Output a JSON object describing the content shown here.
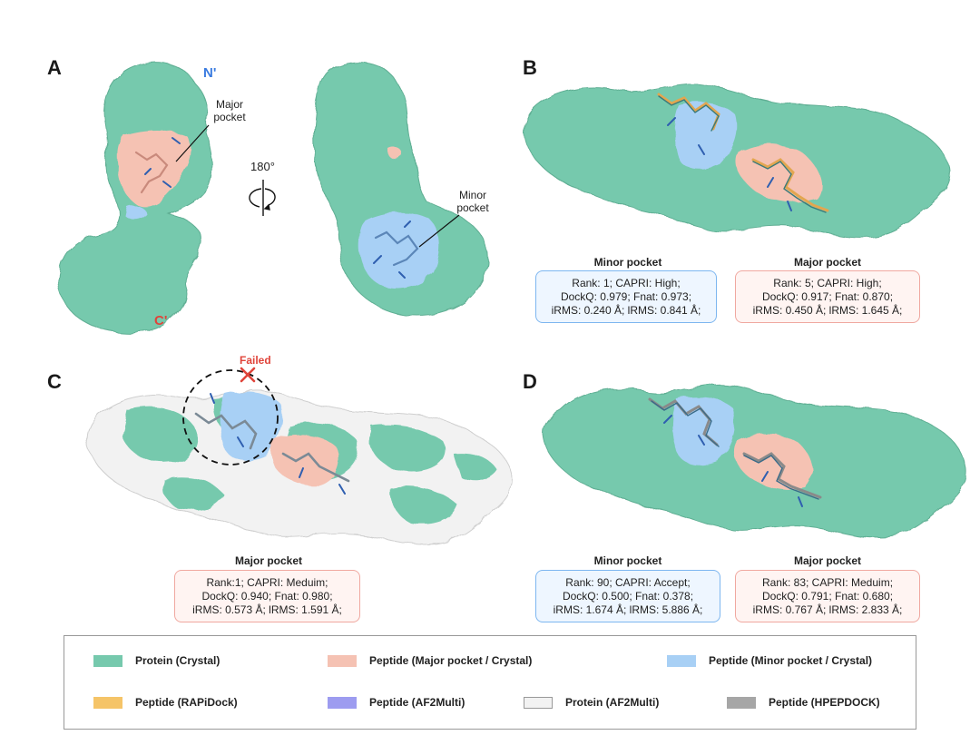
{
  "colors": {
    "protein_crystal": "#76c9ad",
    "peptide_major": "#f5c2b3",
    "peptide_minor": "#a8d0f5",
    "peptide_rapidock": "#f5c468",
    "peptide_af2multi": "#9d9cf0",
    "protein_af2multi": "#f2f2f2",
    "peptide_hpepdock": "#a6a6a6",
    "n_term": "#3a7be0",
    "c_term": "#e0443a",
    "failed": "#e0443a"
  },
  "panels": {
    "A": {
      "letter": "A",
      "n_label": "N'",
      "c_label": "C'",
      "major_label_1": "Major",
      "major_label_2": "pocket",
      "rotation": "180°",
      "minor_label_1": "Minor",
      "minor_label_2": "pocket"
    },
    "B": {
      "letter": "B",
      "minor": {
        "title": "Minor pocket",
        "lines": [
          "Rank: 1; CAPRI: High;",
          "DockQ: 0.979;  Fnat: 0.973;",
          "iRMS: 0.240 Å;  lRMS: 0.841 Å;"
        ]
      },
      "major": {
        "title": "Major pocket",
        "lines": [
          "Rank: 5; CAPRI: High;",
          "DockQ: 0.917;  Fnat: 0.870;",
          "iRMS: 0.450 Å;  lRMS: 1.645 Å;"
        ]
      }
    },
    "C": {
      "letter": "C",
      "failed_label": "Failed",
      "major": {
        "title": "Major pocket",
        "lines": [
          "Rank:1; CAPRI: Meduim;",
          "DockQ: 0.940;  Fnat: 0.980;",
          "iRMS: 0.573 Å;  lRMS: 1.591 Å;"
        ]
      }
    },
    "D": {
      "letter": "D",
      "minor": {
        "title": "Minor pocket",
        "lines": [
          "Rank: 90; CAPRI: Accept;",
          "DockQ: 0.500;  Fnat: 0.378;",
          "iRMS: 1.674 Å;  lRMS: 5.886 Å;"
        ]
      },
      "major": {
        "title": "Major pocket",
        "lines": [
          "Rank: 83; CAPRI: Meduim;",
          "DockQ: 0.791;  Fnat: 0.680;",
          "iRMS: 0.767 Å;  lRMS: 2.833 Å;"
        ]
      }
    }
  },
  "legend": [
    {
      "label": "Protein (Crystal)",
      "color": "#76c9ad"
    },
    {
      "label": "Peptide (Major pocket / Crystal)",
      "color": "#f5c2b3"
    },
    {
      "label": "Peptide (Minor pocket / Crystal)",
      "color": "#a8d0f5"
    },
    {
      "label": "Peptide (RAPiDock)",
      "color": "#f5c468"
    },
    {
      "label": "Peptide (AF2Multi)",
      "color": "#9d9cf0"
    },
    {
      "label": "Protein (AF2Multi)",
      "color": "#f2f2f2"
    },
    {
      "label": "Peptide (HPEPDOCK)",
      "color": "#a6a6a6"
    }
  ]
}
